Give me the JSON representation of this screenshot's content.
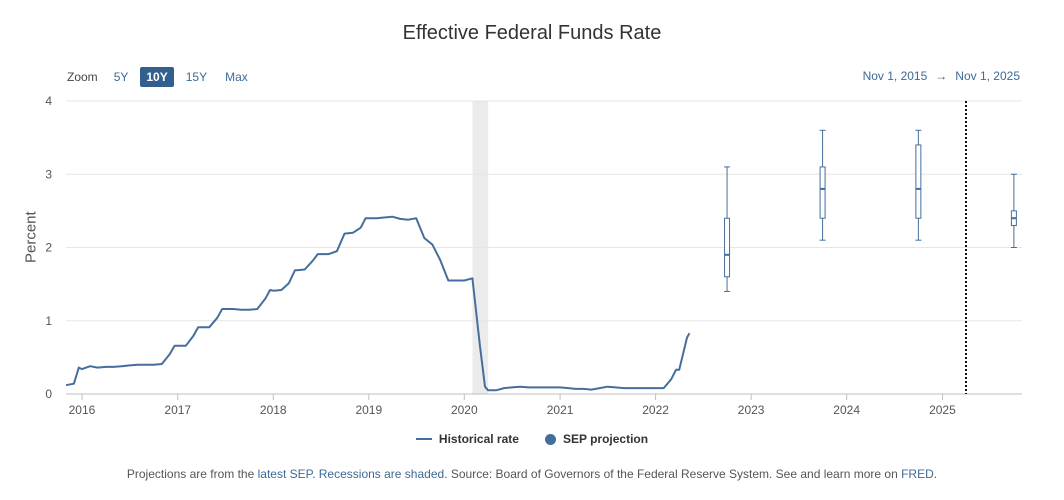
{
  "colors": {
    "line": "#456e9c",
    "box": "#456e9c",
    "recession": "#ebebeb",
    "grid": "#e6e6e6",
    "accent": "#335f8f"
  },
  "header": {
    "zoom_label": "Zoom",
    "zoom_options": [
      "5Y",
      "10Y",
      "15Y",
      "Max"
    ],
    "zoom_selected": "10Y",
    "range_start": "Nov 1, 2015",
    "range_arrow": "→",
    "range_end": "Nov 1, 2025"
  },
  "legend": {
    "historical": "Historical rate",
    "projection": "SEP projection"
  },
  "footer": {
    "p1": "Projections are from the ",
    "link1": "latest SEP",
    "p2": ". ",
    "link2": "Recessions are shaded",
    "p3": ". Source: Board of Governors of the Federal Reserve System. See and learn more on ",
    "link3": "FRED",
    "p4": "."
  },
  "chart_data": {
    "type": "line",
    "title": "Effective Federal Funds Rate",
    "ylabel": "Percent",
    "xlim": [
      "2015-11-01",
      "2025-11-01"
    ],
    "ylim": [
      0,
      4
    ],
    "y_ticks": [
      0,
      1,
      2,
      3,
      4
    ],
    "x_ticks": [
      "2016",
      "2017",
      "2018",
      "2019",
      "2020",
      "2021",
      "2022",
      "2023",
      "2024",
      "2025"
    ],
    "grid": true,
    "legend_position": "bottom",
    "recessions": [
      {
        "start": "2020-02-01",
        "end": "2020-04-01"
      }
    ],
    "marker_line": "2025-04-01",
    "series": [
      {
        "name": "Historical rate",
        "points": [
          [
            "2015-11-01",
            0.12
          ],
          [
            "2015-12-01",
            0.14
          ],
          [
            "2015-12-20",
            0.36
          ],
          [
            "2016-01-01",
            0.34
          ],
          [
            "2016-02-01",
            0.38
          ],
          [
            "2016-03-01",
            0.36
          ],
          [
            "2016-04-01",
            0.37
          ],
          [
            "2016-05-01",
            0.37
          ],
          [
            "2016-06-01",
            0.38
          ],
          [
            "2016-07-01",
            0.39
          ],
          [
            "2016-08-01",
            0.4
          ],
          [
            "2016-09-01",
            0.4
          ],
          [
            "2016-10-01",
            0.4
          ],
          [
            "2016-11-01",
            0.41
          ],
          [
            "2016-12-01",
            0.54
          ],
          [
            "2016-12-20",
            0.66
          ],
          [
            "2017-01-01",
            0.66
          ],
          [
            "2017-02-01",
            0.66
          ],
          [
            "2017-03-01",
            0.79
          ],
          [
            "2017-03-20",
            0.91
          ],
          [
            "2017-04-01",
            0.91
          ],
          [
            "2017-05-01",
            0.91
          ],
          [
            "2017-06-01",
            1.04
          ],
          [
            "2017-06-20",
            1.16
          ],
          [
            "2017-07-01",
            1.16
          ],
          [
            "2017-08-01",
            1.16
          ],
          [
            "2017-09-01",
            1.15
          ],
          [
            "2017-10-01",
            1.15
          ],
          [
            "2017-11-01",
            1.16
          ],
          [
            "2017-12-01",
            1.3
          ],
          [
            "2017-12-20",
            1.42
          ],
          [
            "2018-01-01",
            1.41
          ],
          [
            "2018-02-01",
            1.42
          ],
          [
            "2018-03-01",
            1.51
          ],
          [
            "2018-03-25",
            1.69
          ],
          [
            "2018-04-01",
            1.69
          ],
          [
            "2018-05-01",
            1.7
          ],
          [
            "2018-06-01",
            1.82
          ],
          [
            "2018-06-20",
            1.91
          ],
          [
            "2018-07-01",
            1.91
          ],
          [
            "2018-08-01",
            1.91
          ],
          [
            "2018-09-01",
            1.95
          ],
          [
            "2018-09-30",
            2.19
          ],
          [
            "2018-10-01",
            2.19
          ],
          [
            "2018-11-01",
            2.2
          ],
          [
            "2018-12-01",
            2.27
          ],
          [
            "2018-12-20",
            2.4
          ],
          [
            "2019-01-01",
            2.4
          ],
          [
            "2019-02-01",
            2.4
          ],
          [
            "2019-03-01",
            2.41
          ],
          [
            "2019-04-01",
            2.42
          ],
          [
            "2019-05-01",
            2.39
          ],
          [
            "2019-06-01",
            2.38
          ],
          [
            "2019-07-01",
            2.4
          ],
          [
            "2019-08-01",
            2.13
          ],
          [
            "2019-09-01",
            2.04
          ],
          [
            "2019-10-01",
            1.83
          ],
          [
            "2019-11-01",
            1.55
          ],
          [
            "2019-12-01",
            1.55
          ],
          [
            "2020-01-01",
            1.55
          ],
          [
            "2020-02-01",
            1.58
          ],
          [
            "2020-03-01",
            0.65
          ],
          [
            "2020-03-20",
            0.1
          ],
          [
            "2020-04-01",
            0.05
          ],
          [
            "2020-05-01",
            0.05
          ],
          [
            "2020-06-01",
            0.08
          ],
          [
            "2020-07-01",
            0.09
          ],
          [
            "2020-08-01",
            0.1
          ],
          [
            "2020-09-01",
            0.09
          ],
          [
            "2020-10-01",
            0.09
          ],
          [
            "2020-11-01",
            0.09
          ],
          [
            "2020-12-01",
            0.09
          ],
          [
            "2021-01-01",
            0.09
          ],
          [
            "2021-02-01",
            0.08
          ],
          [
            "2021-03-01",
            0.07
          ],
          [
            "2021-04-01",
            0.07
          ],
          [
            "2021-05-01",
            0.06
          ],
          [
            "2021-06-01",
            0.08
          ],
          [
            "2021-07-01",
            0.1
          ],
          [
            "2021-08-01",
            0.09
          ],
          [
            "2021-09-01",
            0.08
          ],
          [
            "2021-10-01",
            0.08
          ],
          [
            "2021-11-01",
            0.08
          ],
          [
            "2021-12-01",
            0.08
          ],
          [
            "2022-01-01",
            0.08
          ],
          [
            "2022-02-01",
            0.08
          ],
          [
            "2022-03-01",
            0.2
          ],
          [
            "2022-03-20",
            0.33
          ],
          [
            "2022-04-01",
            0.33
          ],
          [
            "2022-05-01",
            0.77
          ],
          [
            "2022-05-10",
            0.83
          ]
        ]
      },
      {
        "name": "SEP projection",
        "boxes": [
          {
            "x": "2022-10-01",
            "low": 1.4,
            "q1": 1.6,
            "median": 1.9,
            "q3": 2.4,
            "high": 3.1
          },
          {
            "x": "2023-10-01",
            "low": 2.1,
            "q1": 2.4,
            "median": 2.8,
            "q3": 3.1,
            "high": 3.6
          },
          {
            "x": "2024-10-01",
            "low": 2.1,
            "q1": 2.4,
            "median": 2.8,
            "q3": 3.4,
            "high": 3.6
          },
          {
            "x": "2025-10-01",
            "low": 2.0,
            "q1": 2.3,
            "median": 2.4,
            "q3": 2.5,
            "high": 3.0
          }
        ]
      }
    ]
  }
}
